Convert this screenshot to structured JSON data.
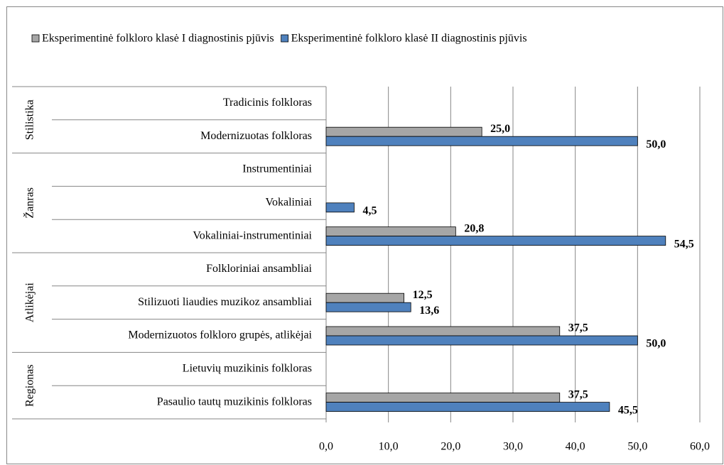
{
  "chart_data": {
    "type": "bar",
    "orientation": "horizontal",
    "groups": [
      {
        "name": "Stilistika",
        "categories": [
          "Tradicinis folkloras",
          "Modernizuotas folkloras"
        ]
      },
      {
        "name": "Žanras",
        "categories": [
          "Instrumentiniai",
          "Vokaliniai",
          "Vokaliniai-instrumentiniai"
        ]
      },
      {
        "name": "Atlikėjai",
        "categories": [
          "Folkloriniai ansambliai",
          "Stilizuoti liaudies muzikoz ansambliai",
          "Modernizuotos folkloro grupės, atlikėjai"
        ]
      },
      {
        "name": "Regionas",
        "categories": [
          "Lietuvių muzikinis folkloras",
          "Pasaulio tautų muzikinis folkloras"
        ]
      }
    ],
    "series": [
      {
        "name": "Eksperimentinė folkloro klasė I diagnostinis pjūvis",
        "color": "#a6a6a6",
        "values": [
          null,
          25.0,
          null,
          null,
          20.8,
          null,
          12.5,
          37.5,
          null,
          37.5
        ],
        "value_labels": [
          null,
          "25,0",
          null,
          null,
          "20,8",
          null,
          "12,5",
          "37,5",
          null,
          "37,5"
        ]
      },
      {
        "name": "Eksperimentinė folkloro klasė II diagnostinis pjūvis",
        "color": "#4f81bd",
        "values": [
          null,
          50.0,
          null,
          4.5,
          54.5,
          null,
          13.6,
          50.0,
          null,
          45.5
        ],
        "value_labels": [
          null,
          "50,0",
          null,
          "4,5",
          "54,5",
          null,
          "13,6",
          "50,0",
          null,
          "45,5"
        ]
      }
    ],
    "xlim": [
      0,
      60
    ],
    "xticks": [
      {
        "value": 0,
        "label": "0,0"
      },
      {
        "value": 10,
        "label": "10,0"
      },
      {
        "value": 20,
        "label": "20,0"
      },
      {
        "value": 30,
        "label": "30,0"
      },
      {
        "value": 40,
        "label": "40,0"
      },
      {
        "value": 50,
        "label": "50,0"
      },
      {
        "value": 60,
        "label": "60,0"
      }
    ],
    "grid": true,
    "legend": "top"
  }
}
